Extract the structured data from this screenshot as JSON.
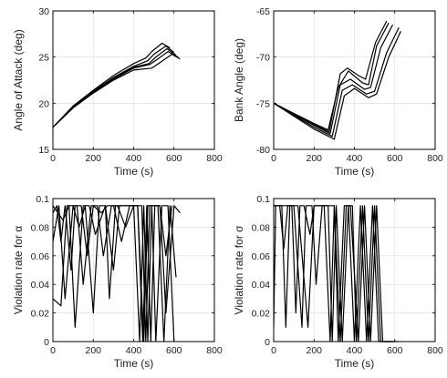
{
  "chart_data": [
    {
      "type": "line",
      "xlabel": "Time (s)",
      "ylabel": "Angle of Attack (deg)",
      "xlim": [
        0,
        800
      ],
      "ylim": [
        15,
        30
      ],
      "xticks": [
        0,
        200,
        400,
        600,
        800
      ],
      "yticks": [
        15,
        20,
        25,
        30
      ],
      "grid": true,
      "series": [
        {
          "x": [
            0,
            100,
            200,
            300,
            400,
            470,
            500,
            560,
            600
          ],
          "y": [
            17.4,
            19.6,
            21.3,
            22.8,
            24.0,
            24.6,
            25.3,
            26.2,
            25.5
          ]
        },
        {
          "x": [
            0,
            100,
            200,
            300,
            400,
            480,
            520,
            570,
            620
          ],
          "y": [
            17.4,
            19.5,
            21.2,
            22.6,
            23.8,
            24.2,
            24.8,
            25.6,
            25.0
          ]
        },
        {
          "x": [
            0,
            100,
            200,
            300,
            400,
            460,
            490,
            540,
            580
          ],
          "y": [
            17.4,
            19.7,
            21.4,
            23.0,
            24.3,
            24.9,
            25.6,
            26.5,
            26.0
          ]
        },
        {
          "x": [
            0,
            100,
            200,
            300,
            400,
            490,
            530,
            590,
            630
          ],
          "y": [
            17.4,
            19.5,
            21.1,
            22.5,
            23.6,
            23.8,
            24.4,
            25.3,
            24.8
          ]
        },
        {
          "x": [
            0,
            100,
            200,
            300,
            400,
            475,
            510,
            565,
            610
          ],
          "y": [
            17.4,
            19.6,
            21.3,
            22.7,
            23.9,
            24.3,
            25.0,
            25.9,
            25.2
          ]
        }
      ]
    },
    {
      "type": "line",
      "xlabel": "Time (s)",
      "ylabel": "Bank Angle (deg)",
      "xlim": [
        0,
        800
      ],
      "ylim": [
        -80,
        -65
      ],
      "xticks": [
        0,
        200,
        400,
        600,
        800
      ],
      "yticks": [
        -80,
        -75,
        -70,
        -65
      ],
      "grid": true,
      "series": [
        {
          "x": [
            0,
            100,
            200,
            280,
            330,
            380,
            450,
            480,
            530,
            590
          ],
          "y": [
            -75.0,
            -76.2,
            -77.4,
            -78.3,
            -73.0,
            -72.4,
            -73.5,
            -73.3,
            -69.0,
            -66.5
          ]
        },
        {
          "x": [
            0,
            100,
            200,
            290,
            340,
            390,
            460,
            500,
            560,
            620
          ],
          "y": [
            -75.0,
            -76.3,
            -77.6,
            -78.6,
            -73.6,
            -73.0,
            -74.0,
            -73.7,
            -69.5,
            -66.8
          ]
        },
        {
          "x": [
            0,
            100,
            200,
            270,
            320,
            370,
            440,
            470,
            510,
            570
          ],
          "y": [
            -75.0,
            -76.1,
            -77.2,
            -77.9,
            -73.3,
            -71.5,
            -72.8,
            -73.0,
            -68.8,
            -66.3
          ]
        },
        {
          "x": [
            0,
            100,
            200,
            300,
            350,
            400,
            470,
            510,
            570,
            630
          ],
          "y": [
            -75.0,
            -76.4,
            -77.8,
            -78.9,
            -74.2,
            -73.4,
            -74.4,
            -74.0,
            -70.0,
            -67.2
          ]
        },
        {
          "x": [
            0,
            100,
            200,
            275,
            330,
            365,
            420,
            455,
            505,
            560
          ],
          "y": [
            -75.0,
            -76.2,
            -77.3,
            -78.1,
            -71.8,
            -71.2,
            -72.0,
            -72.4,
            -68.4,
            -66.1
          ]
        }
      ]
    },
    {
      "type": "line",
      "xlabel": "Time (s)",
      "ylabel": "Violation rate for α",
      "xlim": [
        0,
        800
      ],
      "ylim": [
        0,
        0.1
      ],
      "xticks": [
        0,
        200,
        400,
        600,
        800
      ],
      "yticks": [
        0,
        0.02,
        0.04,
        0.06,
        0.08,
        0.1
      ],
      "grid": true,
      "series": [
        {
          "x": [
            0,
            20,
            40,
            60,
            90,
            110,
            140,
            170,
            200,
            240,
            270,
            300,
            340,
            380,
            420,
            450,
            470,
            500,
            530,
            560,
            600,
            630
          ],
          "y": [
            0.09,
            0.095,
            0.07,
            0.095,
            0.05,
            0.095,
            0.095,
            0.06,
            0.095,
            0.09,
            0.095,
            0.095,
            0.07,
            0.095,
            0.095,
            0.0,
            0.095,
            0.095,
            0.095,
            0.02,
            0.095,
            0.09
          ]
        },
        {
          "x": [
            0,
            30,
            60,
            100,
            130,
            160,
            200,
            230,
            260,
            300,
            330,
            360,
            400,
            440,
            460,
            480,
            520,
            550,
            580,
            610
          ],
          "y": [
            0.07,
            0.095,
            0.03,
            0.095,
            0.08,
            0.095,
            0.02,
            0.095,
            0.095,
            0.05,
            0.095,
            0.095,
            0.095,
            0.095,
            0.0,
            0.095,
            0.095,
            0.0,
            0.095,
            0.045
          ]
        },
        {
          "x": [
            0,
            40,
            70,
            120,
            150,
            190,
            220,
            250,
            290,
            320,
            360,
            400,
            430,
            450,
            470,
            490,
            510,
            540,
            570,
            600
          ],
          "y": [
            0.03,
            0.025,
            0.095,
            0.095,
            0.04,
            0.095,
            0.095,
            0.06,
            0.095,
            0.095,
            0.08,
            0.095,
            0.0,
            0.095,
            0.0,
            0.095,
            0.0,
            0.095,
            0.095,
            0.0
          ]
        },
        {
          "x": [
            0,
            50,
            80,
            110,
            150,
            180,
            210,
            260,
            280,
            310,
            350,
            390,
            420,
            445,
            465,
            485,
            505,
            530,
            560,
            590
          ],
          "y": [
            0.095,
            0.085,
            0.095,
            0.01,
            0.095,
            0.095,
            0.075,
            0.095,
            0.03,
            0.095,
            0.095,
            0.095,
            0.095,
            0.0,
            0.095,
            0.0,
            0.095,
            0.095,
            0.06,
            0.095
          ]
        }
      ]
    },
    {
      "type": "line",
      "xlabel": "Time (s)",
      "ylabel": "Violation rate for σ",
      "xlim": [
        0,
        800
      ],
      "ylim": [
        0,
        0.1
      ],
      "xticks": [
        0,
        200,
        400,
        600,
        800
      ],
      "yticks": [
        0,
        0.02,
        0.04,
        0.06,
        0.08,
        0.1
      ],
      "grid": true,
      "series": [
        {
          "x": [
            0,
            10,
            30,
            50,
            70,
            90,
            110,
            130,
            150,
            180,
            200,
            230,
            250,
            280,
            300,
            320,
            350,
            380,
            420,
            450,
            480,
            510,
            540,
            600
          ],
          "y": [
            0.01,
            0.095,
            0.095,
            0.065,
            0.095,
            0.095,
            0.02,
            0.095,
            0.095,
            0.075,
            0.095,
            0.095,
            0.095,
            0.0,
            0.095,
            0.0,
            0.095,
            0.095,
            0.0,
            0.095,
            0.0,
            0.095,
            0.0,
            0.0
          ]
        },
        {
          "x": [
            0,
            20,
            40,
            60,
            80,
            100,
            140,
            160,
            190,
            210,
            240,
            270,
            290,
            310,
            340,
            370,
            400,
            430,
            460,
            490,
            520,
            560,
            620
          ],
          "y": [
            0.095,
            0.095,
            0.095,
            0.01,
            0.095,
            0.095,
            0.01,
            0.095,
            0.095,
            0.04,
            0.095,
            0.095,
            0.0,
            0.095,
            0.0,
            0.095,
            0.0,
            0.095,
            0.0,
            0.095,
            0.0,
            0.0,
            0.0
          ]
        },
        {
          "x": [
            0,
            30,
            60,
            90,
            120,
            170,
            200,
            220,
            260,
            300,
            330,
            360,
            390,
            410,
            440,
            470,
            500,
            530,
            580
          ],
          "y": [
            0.095,
            0.095,
            0.095,
            0.095,
            0.095,
            0.01,
            0.095,
            0.095,
            0.095,
            0.095,
            0.0,
            0.095,
            0.095,
            0.0,
            0.095,
            0.0,
            0.095,
            0.0,
            0.0
          ]
        }
      ]
    }
  ]
}
